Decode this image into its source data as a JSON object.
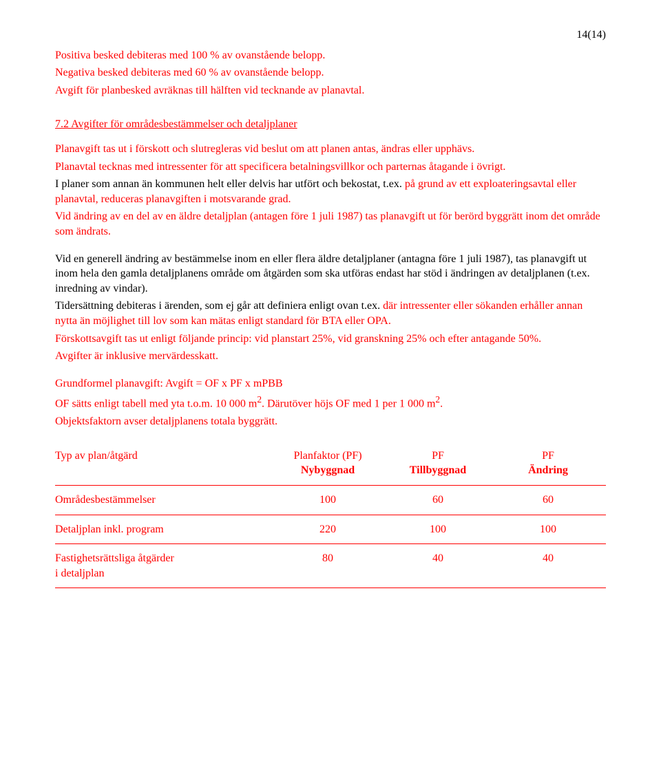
{
  "page_number": "14(14)",
  "intro": {
    "line1": "Positiva besked debiteras med 100 % av ovanstående belopp.",
    "line2": "Negativa besked debiteras med 60 % av ovanstående belopp.",
    "line3": "Avgift för planbesked avräknas till hälften vid tecknande av planavtal."
  },
  "section": {
    "title": "7.2 Avgifter för områdesbestämmelser och detaljplaner"
  },
  "para1": {
    "line1": "Planavgift tas ut i förskott och slutregleras vid beslut om att planen antas, ändras eller upphävs.",
    "line2": "Planavtal tecknas med intressenter för att specificera betalningsvillkor och parternas åtagande i övrigt.",
    "line3a": "I planer som annan än kommunen helt eller delvis har utfört och bekostat, t.ex.",
    "line3b": " på grund av ett exploateringsavtal eller planavtal, reduceras planavgiften i motsvarande grad.",
    "line4": "Vid ändring av en del av en äldre detaljplan (antagen före 1 juli 1987) tas planavgift ut för berörd byggrätt inom det område som ändrats."
  },
  "para2": {
    "line1": "Vid en generell ändring av bestämmelse inom en eller flera äldre detaljplaner (antagna före 1 juli 1987), tas planavgift ut inom hela den gamla detaljplanens område om åtgärden som ska utföras endast har stöd i ändringen av detaljplanen (t.ex. inredning av vindar).",
    "line2a": "Tidersättning debiteras i ärenden, som ej går att definiera enligt ovan t.ex.",
    "line2b": " där intressenter eller sökanden erhåller annan nytta än möjlighet till lov som kan mätas enligt standard för BTA eller OPA.",
    "line3": "Förskottsavgift tas ut enligt följande princip: vid planstart 25%, vid granskning 25% och efter antagande 50%.",
    "line4": "Avgifter är inklusive mervärdesskatt."
  },
  "para3": {
    "line1": "Grundformel planavgift: Avgift = OF x PF x mPBB",
    "line2_pre": "OF sätts enligt tabell med yta t.o.m. 10 000 m",
    "line2_sup1": "2",
    "line2_mid": ". Därutöver höjs OF med 1 per 1 000 m",
    "line2_sup2": "2",
    "line2_end": ".",
    "line3": "Objektsfaktorn avser detaljplanens totala byggrätt."
  },
  "table": {
    "headers": {
      "type": "Typ av plan/åtgärd",
      "pf_line1": "Planfaktor (PF)",
      "pf_line2": "Nybyggnad",
      "till_line1": "PF",
      "till_line2": "Tillbyggnad",
      "andr_line1": "PF",
      "andr_line2": "Ändring"
    },
    "rows": [
      {
        "label": "Områdesbestämmelser",
        "v1": "100",
        "v2": "60",
        "v3": "60"
      },
      {
        "label": "Detaljplan inkl. program",
        "v1": "220",
        "v2": "100",
        "v3": "100"
      },
      {
        "label": "Fastighetsrättsliga åtgärder",
        "label2": "i detaljplan",
        "v1": "80",
        "v2": "40",
        "v3": "40"
      }
    ]
  }
}
